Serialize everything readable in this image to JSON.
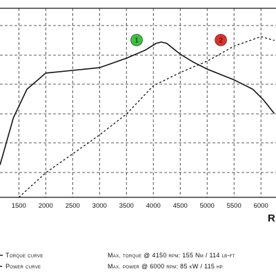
{
  "chart_data": {
    "type": "line",
    "x_label": "R",
    "xlim": [
      1150,
      6280
    ],
    "xticks": [
      1500,
      2000,
      2500,
      3000,
      3500,
      4000,
      4500,
      5000,
      5500,
      6000
    ],
    "ylim": [
      40,
      180
    ],
    "y2lim": [
      0,
      100
    ],
    "grid": true,
    "series": [
      {
        "name": "Torque curve",
        "color": "#111111",
        "dash": false,
        "marker": "1",
        "marker_color": "#3ec23e",
        "x": [
          1150,
          1400,
          1650,
          2000,
          2500,
          3000,
          3500,
          3850,
          4050,
          4150,
          4250,
          4500,
          4750,
          5000,
          5500,
          5850,
          6050,
          6250
        ],
        "values": [
          64,
          99,
          120,
          132,
          134,
          136,
          143,
          149,
          154,
          155,
          154,
          146,
          140,
          135,
          127,
          120,
          112,
          102
        ]
      },
      {
        "name": "Power curve",
        "color": "#111111",
        "dash": true,
        "axis": "y2",
        "marker": "2",
        "marker_color": "#e0302a",
        "x": [
          1500,
          2000,
          2500,
          3000,
          3500,
          4000,
          4500,
          5000,
          5500,
          6000,
          6250
        ],
        "values": [
          0,
          13,
          23,
          33,
          44,
          59,
          66,
          72,
          80,
          85,
          83
        ]
      }
    ],
    "annotations": [
      "Max. torque @ 4150 rpm: 155 Nm / 114 lb-ft",
      "Max. power @ 6000 rpm: 85 kW / 115 hp"
    ]
  }
}
